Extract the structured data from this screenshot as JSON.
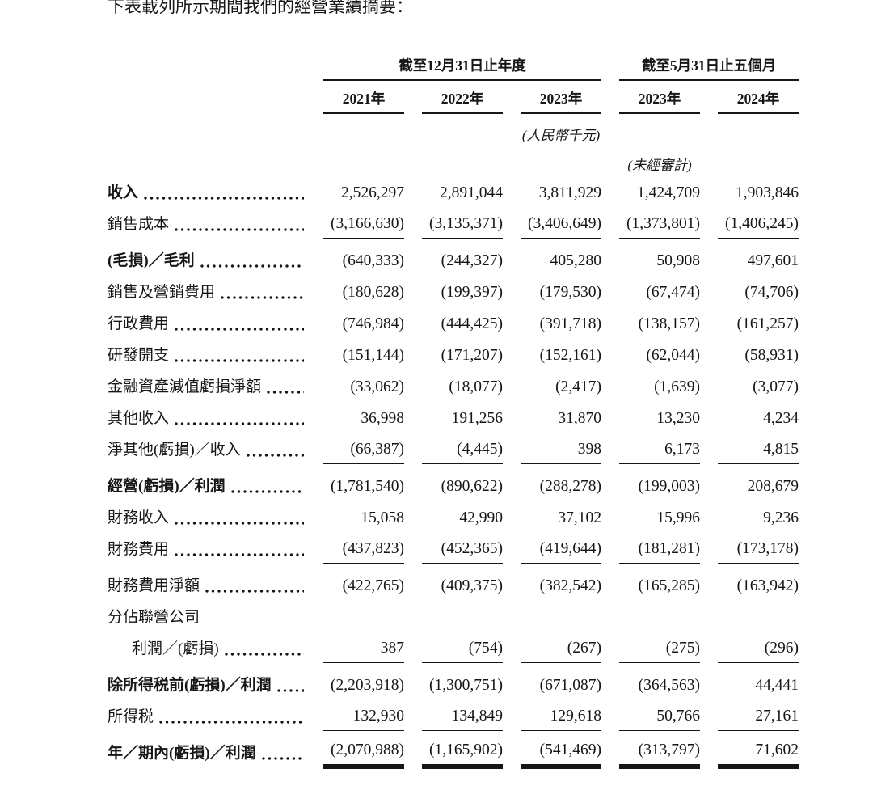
{
  "intro": "下表載列所示期間我們的經營業績摘要：",
  "table": {
    "col_groups": [
      {
        "label": "截至12月31日止年度",
        "cols": [
          "2021年",
          "2022年",
          "2023年"
        ]
      },
      {
        "label": "截至5月31日止五個月",
        "cols": [
          "2023年",
          "2024年"
        ]
      }
    ],
    "currency_note": "(人民幣千元)",
    "unaudited_note": "(未經審計)",
    "rows": [
      {
        "label": "收入",
        "bold": true,
        "values": [
          "2,526,297",
          "2,891,044",
          "3,811,929",
          "1,424,709",
          "1,903,846"
        ]
      },
      {
        "label": "銷售成本",
        "underline": true,
        "values": [
          "(3,166,630)",
          "(3,135,371)",
          "(3,406,649)",
          "(1,373,801)",
          "(1,406,245)"
        ]
      },
      {
        "label": "(毛損)／毛利",
        "bold": true,
        "section": true,
        "values": [
          "(640,333)",
          "(244,327)",
          "405,280",
          "50,908",
          "497,601"
        ]
      },
      {
        "label": "銷售及營銷費用",
        "values": [
          "(180,628)",
          "(199,397)",
          "(179,530)",
          "(67,474)",
          "(74,706)"
        ]
      },
      {
        "label": "行政費用",
        "values": [
          "(746,984)",
          "(444,425)",
          "(391,718)",
          "(138,157)",
          "(161,257)"
        ]
      },
      {
        "label": "研發開支",
        "values": [
          "(151,144)",
          "(171,207)",
          "(152,161)",
          "(62,044)",
          "(58,931)"
        ]
      },
      {
        "label": "金融資產減值虧損淨額",
        "values": [
          "(33,062)",
          "(18,077)",
          "(2,417)",
          "(1,639)",
          "(3,077)"
        ]
      },
      {
        "label": "其他收入",
        "values": [
          "36,998",
          "191,256",
          "31,870",
          "13,230",
          "4,234"
        ]
      },
      {
        "label": "淨其他(虧損)／收入",
        "underline": true,
        "values": [
          "(66,387)",
          "(4,445)",
          "398",
          "6,173",
          "4,815"
        ]
      },
      {
        "label": "經營(虧損)／利潤",
        "bold": true,
        "section": true,
        "values": [
          "(1,781,540)",
          "(890,622)",
          "(288,278)",
          "(199,003)",
          "208,679"
        ]
      },
      {
        "label": "財務收入",
        "values": [
          "15,058",
          "42,990",
          "37,102",
          "15,996",
          "9,236"
        ]
      },
      {
        "label": "財務費用",
        "underline": true,
        "values": [
          "(437,823)",
          "(452,365)",
          "(419,644)",
          "(181,281)",
          "(173,178)"
        ]
      },
      {
        "label": "財務費用淨額",
        "section": true,
        "values": [
          "(422,765)",
          "(409,375)",
          "(382,542)",
          "(165,285)",
          "(163,942)"
        ]
      },
      {
        "label": "分佔聯營公司",
        "nodots": true,
        "values": null
      },
      {
        "label": "利潤／(虧損)",
        "indent": true,
        "underline": true,
        "values": [
          "387",
          "(754)",
          "(267)",
          "(275)",
          "(296)"
        ]
      },
      {
        "label": "除所得税前(虧損)／利潤",
        "bold": true,
        "section": true,
        "values": [
          "(2,203,918)",
          "(1,300,751)",
          "(671,087)",
          "(364,563)",
          "44,441"
        ]
      },
      {
        "label": "所得税",
        "underline": true,
        "values": [
          "132,930",
          "134,849",
          "129,618",
          "50,766",
          "27,161"
        ]
      },
      {
        "label": "年／期內(虧損)／利潤",
        "bold": true,
        "double": true,
        "section": true,
        "values": [
          "(2,070,988)",
          "(1,165,902)",
          "(541,469)",
          "(313,797)",
          "71,602"
        ]
      }
    ]
  }
}
